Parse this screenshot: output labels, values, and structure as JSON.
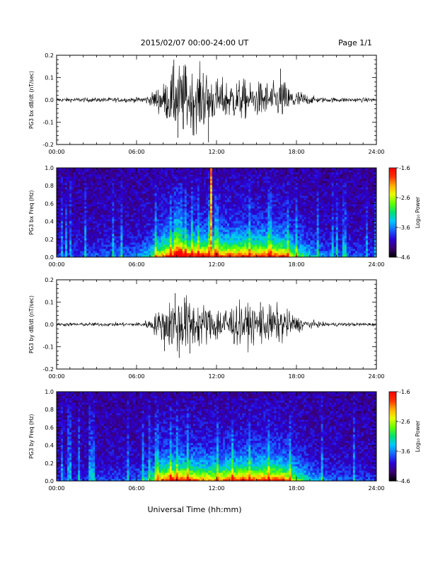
{
  "header": {
    "title": "2015/02/07  00:00-24:00 UT",
    "page": "Page 1/1"
  },
  "footer": {
    "xlabel": "Universal Time (hh:mm)"
  },
  "colorbar": {
    "label": "Log₁₀ Power",
    "ticks": [
      "-1.6",
      "-2.6",
      "-3.6",
      "-4.6"
    ],
    "range": [
      -4.6,
      -1.6
    ],
    "colors": [
      "#000000",
      "#3a0070",
      "#2a00d8",
      "#1860ff",
      "#00c8ff",
      "#00e070",
      "#60ff00",
      "#e8ff00",
      "#ffb000",
      "#ff3000",
      "#ff0000"
    ]
  },
  "chart_data": [
    {
      "type": "line",
      "id": "bx-dbdt",
      "ylabel": "PG3 bx dB/dt (nT/sec)",
      "xlim": [
        0,
        24
      ],
      "ylim": [
        -0.2,
        0.2
      ],
      "xticks": [
        "00:00",
        "06:00",
        "12:00",
        "18:00",
        "24:00"
      ],
      "yticks": [
        "0.2",
        "0.1",
        "0.0",
        "-0.1",
        "-0.2"
      ],
      "x_unit": "hours UT",
      "envelope": {
        "x": [
          0,
          6,
          7,
          7.5,
          8,
          8.5,
          9,
          9.5,
          10,
          10.5,
          11,
          11.5,
          12,
          12.5,
          13,
          13.5,
          14,
          14.5,
          15,
          15.5,
          16,
          16.5,
          17,
          17.5,
          18,
          18.5,
          19,
          20,
          24
        ],
        "amplitude": [
          0.005,
          0.006,
          0.012,
          0.03,
          0.04,
          0.06,
          0.08,
          0.09,
          0.07,
          0.07,
          0.08,
          0.06,
          0.05,
          0.05,
          0.05,
          0.05,
          0.05,
          0.04,
          0.04,
          0.05,
          0.04,
          0.04,
          0.05,
          0.03,
          0.025,
          0.02,
          0.01,
          0.006,
          0.005
        ]
      },
      "spikes": [
        {
          "x": 8.8,
          "y": 0.18
        },
        {
          "x": 9.1,
          "y": -0.17
        },
        {
          "x": 9.7,
          "y": 0.15
        },
        {
          "x": 10.3,
          "y": -0.16
        },
        {
          "x": 11.4,
          "y": -0.19
        },
        {
          "x": 11.0,
          "y": 0.12
        },
        {
          "x": 16.8,
          "y": 0.14
        }
      ]
    },
    {
      "type": "heatmap",
      "id": "bx-spectrogram",
      "ylabel": "PG3 bx Freq (Hz)",
      "xlim": [
        0,
        24
      ],
      "ylim": [
        0,
        1.0
      ],
      "xticks": [
        "00:00",
        "06:00",
        "12:00",
        "18:00",
        "24:00"
      ],
      "yticks": [
        "1.0",
        "0.8",
        "0.6",
        "0.4",
        "0.2",
        "0.0"
      ],
      "zlim": [
        -4.6,
        -1.6
      ],
      "activity": {
        "x": [
          0,
          6,
          7,
          7.5,
          8,
          8.5,
          9,
          9.5,
          10,
          10.5,
          11,
          11.5,
          12,
          12.5,
          13,
          13.5,
          14,
          14.5,
          15,
          15.5,
          16,
          16.5,
          17,
          17.5,
          18,
          18.5,
          19,
          20,
          24
        ],
        "level": [
          0.1,
          0.2,
          0.35,
          0.6,
          0.75,
          0.85,
          0.9,
          0.9,
          0.85,
          0.85,
          0.9,
          0.85,
          0.8,
          0.8,
          0.85,
          0.8,
          0.85,
          0.8,
          0.8,
          0.85,
          0.8,
          0.8,
          0.8,
          0.65,
          0.5,
          0.4,
          0.3,
          0.2,
          0.1
        ]
      },
      "line_features": [
        {
          "x": 11.6,
          "level": 0.9
        }
      ]
    },
    {
      "type": "line",
      "id": "by-dbdt",
      "ylabel": "PG3 by dB/dt (nT/sec)",
      "xlim": [
        0,
        24
      ],
      "ylim": [
        -0.2,
        0.2
      ],
      "xticks": [
        "00:00",
        "06:00",
        "12:00",
        "18:00",
        "24:00"
      ],
      "yticks": [
        "0.2",
        "0.1",
        "0.0",
        "-0.1",
        "-0.2"
      ],
      "x_unit": "hours UT",
      "envelope": {
        "x": [
          0,
          6,
          7,
          7.5,
          8,
          8.5,
          9,
          9.5,
          10,
          10.5,
          11,
          11.5,
          12,
          12.5,
          13,
          13.5,
          14,
          14.5,
          15,
          15.5,
          16,
          16.5,
          17,
          17.5,
          18,
          18.5,
          19,
          20,
          24
        ],
        "amplitude": [
          0.004,
          0.005,
          0.012,
          0.03,
          0.04,
          0.06,
          0.07,
          0.07,
          0.06,
          0.06,
          0.05,
          0.045,
          0.045,
          0.05,
          0.05,
          0.05,
          0.05,
          0.045,
          0.045,
          0.05,
          0.045,
          0.045,
          0.045,
          0.03,
          0.02,
          0.015,
          0.01,
          0.005,
          0.004
        ]
      },
      "spikes": [
        {
          "x": 8.9,
          "y": 0.14
        },
        {
          "x": 9.2,
          "y": -0.15
        },
        {
          "x": 10.0,
          "y": -0.13
        },
        {
          "x": 9.6,
          "y": 0.12
        },
        {
          "x": 15.3,
          "y": 0.1
        },
        {
          "x": 8.1,
          "y": -0.12
        }
      ]
    },
    {
      "type": "heatmap",
      "id": "by-spectrogram",
      "ylabel": "PG3 by Freq (Hz)",
      "xlim": [
        0,
        24
      ],
      "ylim": [
        0,
        1.0
      ],
      "xticks": [
        "00:00",
        "06:00",
        "12:00",
        "18:00",
        "24:00"
      ],
      "yticks": [
        "1.0",
        "0.8",
        "0.6",
        "0.4",
        "0.2",
        "0.0"
      ],
      "zlim": [
        -4.6,
        -1.6
      ],
      "activity": {
        "x": [
          0,
          6,
          7,
          7.5,
          8,
          8.5,
          9,
          9.5,
          10,
          10.5,
          11,
          11.5,
          12,
          12.5,
          13,
          13.5,
          14,
          14.5,
          15,
          15.5,
          16,
          16.5,
          17,
          17.5,
          18,
          18.5,
          19,
          20,
          24
        ],
        "level": [
          0.1,
          0.15,
          0.3,
          0.6,
          0.8,
          0.85,
          0.85,
          0.85,
          0.8,
          0.75,
          0.7,
          0.7,
          0.7,
          0.75,
          0.8,
          0.8,
          0.85,
          0.8,
          0.8,
          0.85,
          0.8,
          0.8,
          0.8,
          0.65,
          0.5,
          0.4,
          0.3,
          0.2,
          0.1
        ]
      },
      "line_features": []
    }
  ]
}
